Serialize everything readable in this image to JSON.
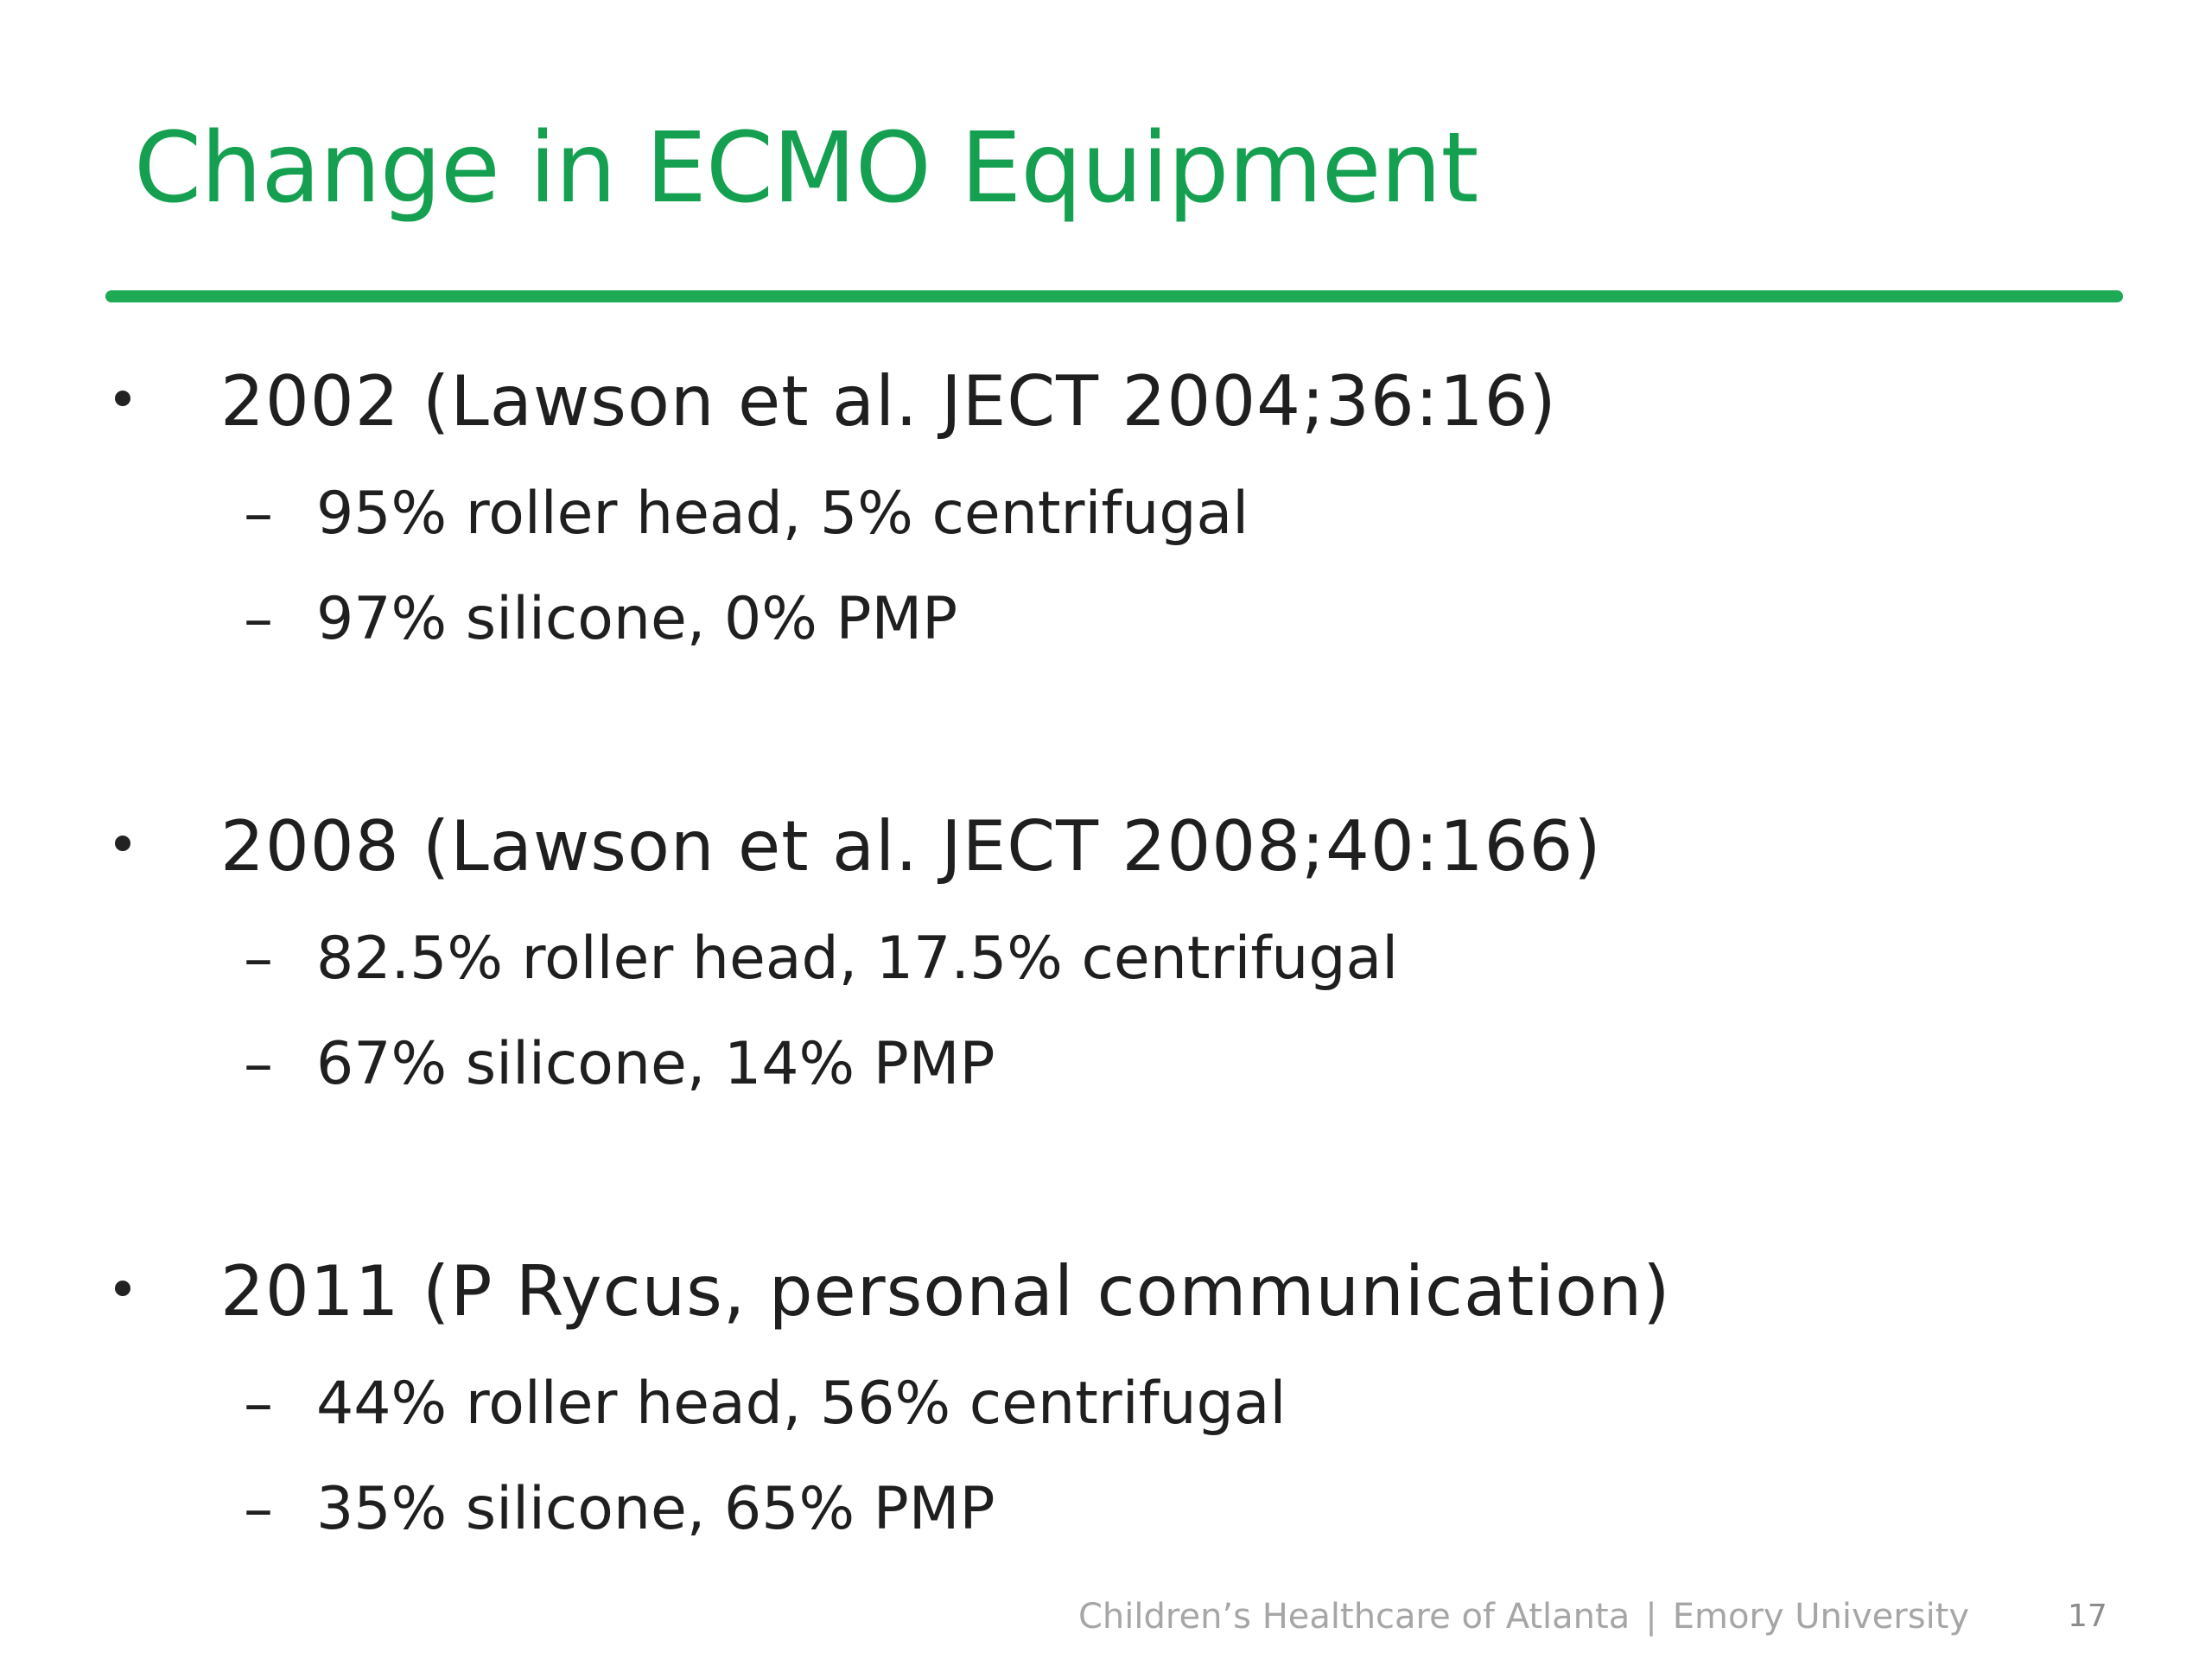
{
  "slide": {
    "title": "Change in ECMO Equipment",
    "bullets": [
      {
        "text": "2002  (Lawson et al.  JECT 2004;36:16)",
        "sub_items": [
          "95% roller head, 5% centrifugal",
          "97% silicone, 0% PMP"
        ]
      },
      {
        "text": "2008 (Lawson et al. JECT 2008;40:166)",
        "sub_items": [
          "82.5% roller head, 17.5% centrifugal",
          "67% silicone, 14% PMP"
        ]
      },
      {
        "text": "2011 (P Rycus, personal communication)",
        "sub_items": [
          "44% roller head, 56% centrifugal",
          "35% silicone, 65% PMP"
        ]
      }
    ],
    "sub_bullet_symbol": "–",
    "footer": {
      "organization": "Children’s Healthcare of Atlanta",
      "separator": "|",
      "university": "Emory University"
    },
    "page_number": "17"
  },
  "colors": {
    "title": "#14a050",
    "rule": "#1ea954",
    "body_text": "#1f1f1f",
    "footer_text": "#a6a6a6"
  }
}
